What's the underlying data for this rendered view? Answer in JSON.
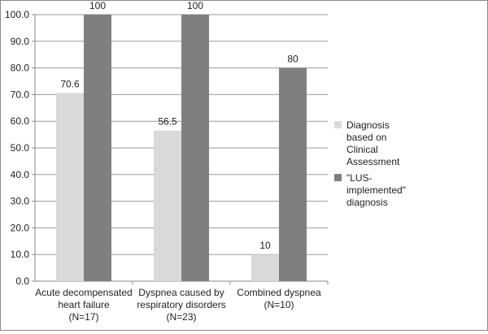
{
  "chart_data": {
    "type": "bar",
    "categories": [
      [
        "Acute decompensated",
        "heart failure",
        "(N=17)"
      ],
      [
        "Dyspnea caused by",
        "respiratory disorders",
        "(N=23)"
      ],
      [
        "Combined dyspnea",
        "(N=10)"
      ]
    ],
    "series": [
      {
        "name": [
          "Diagnosis",
          "based on",
          "Clinical",
          "Assessment"
        ],
        "values": [
          70.6,
          56.5,
          10
        ],
        "labels": [
          "70.6",
          "56.5",
          "10"
        ],
        "color": "#d9d9d9"
      },
      {
        "name": [
          "\"LUS-",
          "implemented\"",
          "diagnosis"
        ],
        "values": [
          100,
          100,
          80
        ],
        "labels": [
          "100",
          "100",
          "80"
        ],
        "color": "#7f7f7f"
      }
    ],
    "ylim": [
      0,
      100
    ],
    "yticks": [
      "0.0",
      "10.0",
      "20.0",
      "30.0",
      "40.0",
      "50.0",
      "60.0",
      "70.0",
      "80.0",
      "90.0",
      "100.0"
    ],
    "grid": true,
    "legend_position": "right"
  }
}
